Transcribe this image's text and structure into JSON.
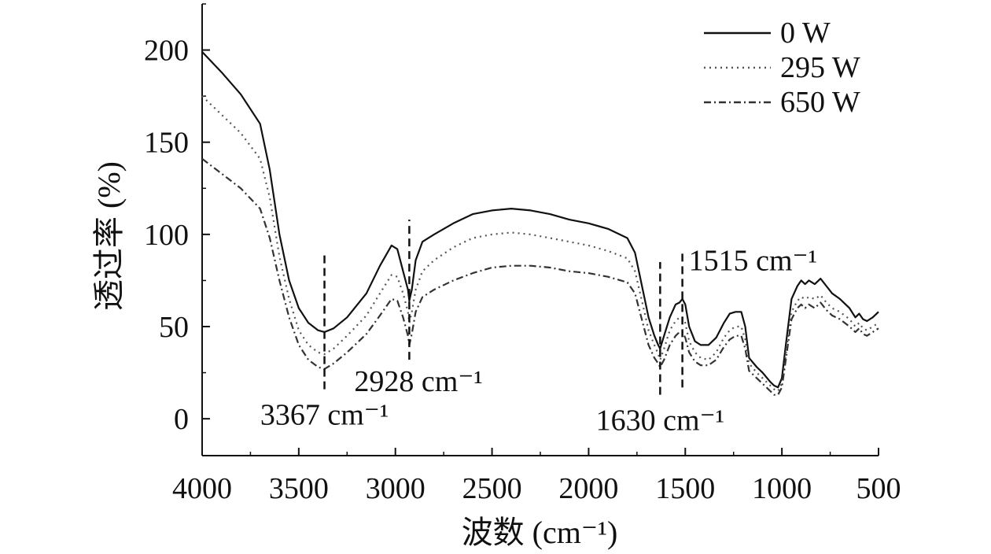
{
  "chart_data": {
    "type": "line",
    "xlabel": "波数 (cm⁻¹)",
    "ylabel": "透过率 (%)",
    "xlim": [
      4000,
      500
    ],
    "ylim": [
      -20,
      225
    ],
    "x_reversed": true,
    "x_ticks": [
      4000,
      3500,
      3000,
      2500,
      2000,
      1500,
      1000,
      500
    ],
    "x_tick_labels": [
      "4000",
      "3500",
      "3000",
      "2500",
      "2000",
      "1500",
      "1000",
      "500"
    ],
    "y_ticks": [
      0,
      50,
      100,
      150,
      200
    ],
    "y_tick_labels": [
      "0",
      "50",
      "100",
      "150",
      "200"
    ],
    "grid": false,
    "legend_position": "top-right",
    "series": [
      {
        "name": "0 W",
        "color": "#111111",
        "style": "solid",
        "points": [
          [
            4000,
            199
          ],
          [
            3900,
            188
          ],
          [
            3800,
            176
          ],
          [
            3700,
            160
          ],
          [
            3650,
            135
          ],
          [
            3600,
            100
          ],
          [
            3550,
            75
          ],
          [
            3500,
            60
          ],
          [
            3450,
            52
          ],
          [
            3400,
            48
          ],
          [
            3367,
            47
          ],
          [
            3320,
            49
          ],
          [
            3250,
            55
          ],
          [
            3150,
            68
          ],
          [
            3080,
            83
          ],
          [
            3020,
            94
          ],
          [
            2990,
            92
          ],
          [
            2960,
            80
          ],
          [
            2935,
            70
          ],
          [
            2928,
            64
          ],
          [
            2915,
            70
          ],
          [
            2895,
            86
          ],
          [
            2860,
            96
          ],
          [
            2800,
            100
          ],
          [
            2700,
            106
          ],
          [
            2600,
            111
          ],
          [
            2500,
            113
          ],
          [
            2400,
            114
          ],
          [
            2300,
            113
          ],
          [
            2200,
            111
          ],
          [
            2100,
            108
          ],
          [
            2000,
            106
          ],
          [
            1900,
            103
          ],
          [
            1800,
            98
          ],
          [
            1760,
            90
          ],
          [
            1720,
            70
          ],
          [
            1690,
            55
          ],
          [
            1660,
            45
          ],
          [
            1640,
            40
          ],
          [
            1630,
            38
          ],
          [
            1610,
            45
          ],
          [
            1580,
            55
          ],
          [
            1550,
            62
          ],
          [
            1530,
            63
          ],
          [
            1515,
            65
          ],
          [
            1500,
            62
          ],
          [
            1480,
            50
          ],
          [
            1450,
            42
          ],
          [
            1420,
            40
          ],
          [
            1380,
            40
          ],
          [
            1340,
            44
          ],
          [
            1300,
            52
          ],
          [
            1270,
            57
          ],
          [
            1240,
            58
          ],
          [
            1210,
            58
          ],
          [
            1190,
            50
          ],
          [
            1170,
            33
          ],
          [
            1130,
            28
          ],
          [
            1100,
            25
          ],
          [
            1060,
            20
          ],
          [
            1040,
            18
          ],
          [
            1020,
            17
          ],
          [
            1000,
            22
          ],
          [
            980,
            40
          ],
          [
            950,
            65
          ],
          [
            920,
            72
          ],
          [
            900,
            75
          ],
          [
            880,
            73
          ],
          [
            860,
            75
          ],
          [
            830,
            73
          ],
          [
            800,
            76
          ],
          [
            770,
            72
          ],
          [
            740,
            68
          ],
          [
            700,
            65
          ],
          [
            650,
            60
          ],
          [
            620,
            55
          ],
          [
            600,
            57
          ],
          [
            580,
            54
          ],
          [
            560,
            53
          ],
          [
            530,
            55
          ],
          [
            500,
            58
          ]
        ]
      },
      {
        "name": "295 W",
        "color": "#555555",
        "style": "dotted",
        "points": [
          [
            4000,
            175
          ],
          [
            3900,
            165
          ],
          [
            3800,
            155
          ],
          [
            3700,
            141
          ],
          [
            3650,
            120
          ],
          [
            3600,
            88
          ],
          [
            3550,
            65
          ],
          [
            3500,
            48
          ],
          [
            3450,
            40
          ],
          [
            3400,
            36
          ],
          [
            3367,
            35
          ],
          [
            3320,
            38
          ],
          [
            3250,
            45
          ],
          [
            3150,
            56
          ],
          [
            3080,
            68
          ],
          [
            3020,
            78
          ],
          [
            2990,
            77
          ],
          [
            2960,
            68
          ],
          [
            2935,
            58
          ],
          [
            2928,
            52
          ],
          [
            2915,
            58
          ],
          [
            2895,
            70
          ],
          [
            2860,
            80
          ],
          [
            2800,
            86
          ],
          [
            2700,
            93
          ],
          [
            2600,
            98
          ],
          [
            2500,
            100
          ],
          [
            2400,
            101
          ],
          [
            2300,
            100
          ],
          [
            2200,
            98
          ],
          [
            2100,
            96
          ],
          [
            2000,
            94
          ],
          [
            1900,
            91
          ],
          [
            1800,
            87
          ],
          [
            1760,
            80
          ],
          [
            1720,
            62
          ],
          [
            1690,
            48
          ],
          [
            1660,
            40
          ],
          [
            1640,
            35
          ],
          [
            1630,
            32
          ],
          [
            1610,
            38
          ],
          [
            1580,
            48
          ],
          [
            1550,
            53
          ],
          [
            1530,
            55
          ],
          [
            1515,
            55
          ],
          [
            1500,
            52
          ],
          [
            1480,
            42
          ],
          [
            1450,
            36
          ],
          [
            1420,
            33
          ],
          [
            1380,
            32
          ],
          [
            1340,
            36
          ],
          [
            1300,
            44
          ],
          [
            1270,
            48
          ],
          [
            1240,
            50
          ],
          [
            1210,
            50
          ],
          [
            1190,
            43
          ],
          [
            1170,
            30
          ],
          [
            1130,
            25
          ],
          [
            1100,
            22
          ],
          [
            1060,
            18
          ],
          [
            1040,
            16
          ],
          [
            1020,
            15
          ],
          [
            1000,
            19
          ],
          [
            980,
            35
          ],
          [
            950,
            58
          ],
          [
            920,
            64
          ],
          [
            900,
            66
          ],
          [
            880,
            65
          ],
          [
            860,
            66
          ],
          [
            830,
            65
          ],
          [
            800,
            67
          ],
          [
            770,
            63
          ],
          [
            740,
            60
          ],
          [
            700,
            58
          ],
          [
            650,
            54
          ],
          [
            620,
            50
          ],
          [
            600,
            52
          ],
          [
            580,
            49
          ],
          [
            560,
            48
          ],
          [
            530,
            50
          ],
          [
            500,
            52
          ]
        ]
      },
      {
        "name": "650 W",
        "color": "#333333",
        "style": "dashdot",
        "points": [
          [
            4000,
            141
          ],
          [
            3900,
            133
          ],
          [
            3800,
            125
          ],
          [
            3700,
            114
          ],
          [
            3650,
            98
          ],
          [
            3600,
            75
          ],
          [
            3550,
            55
          ],
          [
            3500,
            40
          ],
          [
            3450,
            32
          ],
          [
            3400,
            28
          ],
          [
            3367,
            27
          ],
          [
            3320,
            30
          ],
          [
            3250,
            36
          ],
          [
            3150,
            46
          ],
          [
            3080,
            56
          ],
          [
            3020,
            65
          ],
          [
            2990,
            64
          ],
          [
            2960,
            55
          ],
          [
            2935,
            45
          ],
          [
            2928,
            40
          ],
          [
            2915,
            46
          ],
          [
            2895,
            58
          ],
          [
            2860,
            66
          ],
          [
            2800,
            70
          ],
          [
            2700,
            75
          ],
          [
            2600,
            79
          ],
          [
            2500,
            82
          ],
          [
            2400,
            83
          ],
          [
            2300,
            83
          ],
          [
            2200,
            82
          ],
          [
            2100,
            80
          ],
          [
            2000,
            79
          ],
          [
            1900,
            77
          ],
          [
            1800,
            74
          ],
          [
            1760,
            68
          ],
          [
            1720,
            52
          ],
          [
            1690,
            40
          ],
          [
            1660,
            33
          ],
          [
            1640,
            30
          ],
          [
            1630,
            28
          ],
          [
            1610,
            32
          ],
          [
            1580,
            40
          ],
          [
            1550,
            45
          ],
          [
            1530,
            47
          ],
          [
            1515,
            47
          ],
          [
            1500,
            44
          ],
          [
            1480,
            36
          ],
          [
            1450,
            31
          ],
          [
            1420,
            29
          ],
          [
            1380,
            29
          ],
          [
            1340,
            32
          ],
          [
            1300,
            39
          ],
          [
            1270,
            43
          ],
          [
            1240,
            45
          ],
          [
            1210,
            45
          ],
          [
            1190,
            38
          ],
          [
            1170,
            26
          ],
          [
            1130,
            22
          ],
          [
            1100,
            19
          ],
          [
            1060,
            15
          ],
          [
            1040,
            13
          ],
          [
            1020,
            13
          ],
          [
            1000,
            17
          ],
          [
            980,
            32
          ],
          [
            950,
            54
          ],
          [
            920,
            60
          ],
          [
            900,
            62
          ],
          [
            880,
            60
          ],
          [
            860,
            62
          ],
          [
            830,
            60
          ],
          [
            800,
            63
          ],
          [
            770,
            59
          ],
          [
            740,
            56
          ],
          [
            700,
            54
          ],
          [
            650,
            50
          ],
          [
            620,
            47
          ],
          [
            600,
            49
          ],
          [
            580,
            46
          ],
          [
            560,
            45
          ],
          [
            530,
            47
          ],
          [
            500,
            49
          ]
        ]
      }
    ],
    "annotations": [
      {
        "label": "3367 cm⁻¹",
        "x": 3367,
        "line_y_range": [
          16,
          90
        ],
        "text_anchor": "below"
      },
      {
        "label": "2928 cm⁻¹",
        "x": 2928,
        "line_y_range": [
          32,
          108
        ],
        "text_anchor": "below-right"
      },
      {
        "label": "1630 cm⁻¹",
        "x": 1630,
        "line_y_range": [
          13,
          85
        ],
        "text_anchor": "below"
      },
      {
        "label": "1515 cm⁻¹",
        "x": 1515,
        "line_y_range": [
          17,
          90
        ],
        "text_anchor": "above-right"
      }
    ]
  }
}
